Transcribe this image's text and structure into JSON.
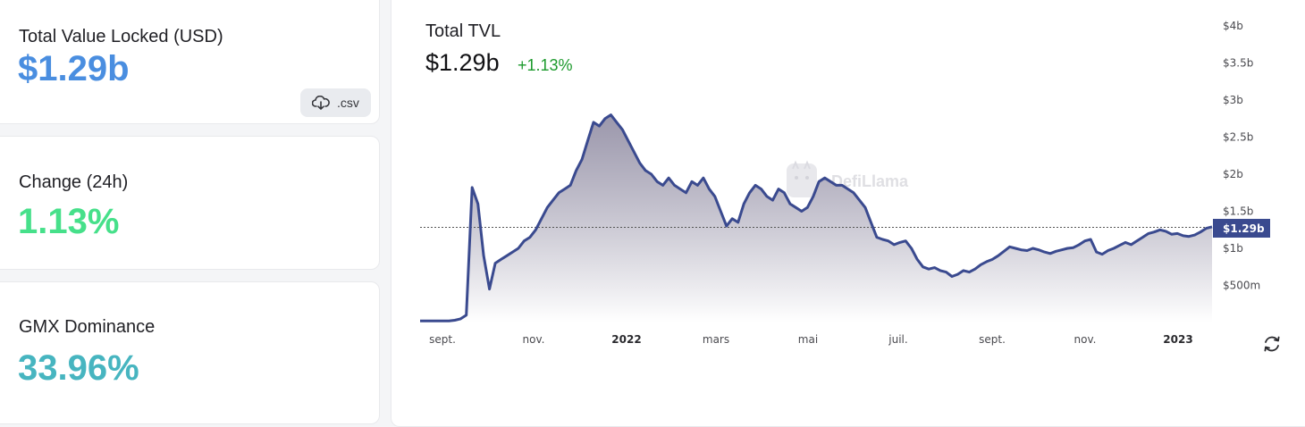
{
  "stats": {
    "tvl": {
      "label": "Total Value Locked (USD)",
      "value": "$1.29b",
      "color": "#4a8ee0"
    },
    "change": {
      "label": "Change (24h)",
      "value": "1.13%",
      "color": "#46e08a"
    },
    "dominance": {
      "label": "GMX Dominance",
      "value": "33.96%",
      "color": "#47b5c0"
    }
  },
  "csv_button": {
    "label": ".csv",
    "icon": "cloud-download-icon"
  },
  "chart": {
    "title": "Total TVL",
    "current_value": "$1.29b",
    "change": "+1.13%",
    "watermark": "DefiLlama",
    "current_label": "$1.29b",
    "refresh_icon": "refresh-icon",
    "line_color": "#3a4a8f",
    "label_badge_color": "#3a4a8f"
  },
  "chart_data": {
    "type": "area",
    "title": "Total TVL",
    "y_ticks": [
      "$500m",
      "$1b",
      "$1.5b",
      "$2b",
      "$2.5b",
      "$3b",
      "$3.5b",
      "$4b"
    ],
    "x_ticks": [
      {
        "label": "sept.",
        "bold": false
      },
      {
        "label": "nov.",
        "bold": false
      },
      {
        "label": "2022",
        "bold": true
      },
      {
        "label": "mars",
        "bold": false
      },
      {
        "label": "mai",
        "bold": false
      },
      {
        "label": "juil.",
        "bold": false
      },
      {
        "label": "sept.",
        "bold": false
      },
      {
        "label": "nov.",
        "bold": false
      },
      {
        "label": "2023",
        "bold": true
      }
    ],
    "ylim": [
      0,
      4000000000
    ],
    "series": [
      {
        "values_b": [
          0.02,
          0.02,
          0.02,
          0.02,
          0.02,
          0.02,
          0.03,
          0.05,
          0.1,
          1.82,
          1.6,
          0.9,
          0.45,
          0.8,
          0.85,
          0.9,
          0.95,
          1.0,
          1.1,
          1.15,
          1.25,
          1.4,
          1.55,
          1.65,
          1.75,
          1.8,
          1.85,
          2.05,
          2.2,
          2.45,
          2.7,
          2.65,
          2.75,
          2.8,
          2.7,
          2.6,
          2.45,
          2.3,
          2.15,
          2.05,
          2.0,
          1.9,
          1.85,
          1.95,
          1.85,
          1.8,
          1.75,
          1.9,
          1.85,
          1.95,
          1.8,
          1.7,
          1.5,
          1.3,
          1.4,
          1.35,
          1.6,
          1.75,
          1.85,
          1.8,
          1.7,
          1.65,
          1.8,
          1.75,
          1.6,
          1.55,
          1.5,
          1.55,
          1.7,
          1.9,
          1.95,
          1.9,
          1.85,
          1.85,
          1.8,
          1.75,
          1.65,
          1.55,
          1.35,
          1.15,
          1.12,
          1.1,
          1.05,
          1.08,
          1.1,
          1.0,
          0.85,
          0.75,
          0.72,
          0.74,
          0.7,
          0.68,
          0.62,
          0.65,
          0.7,
          0.68,
          0.72,
          0.78,
          0.82,
          0.85,
          0.9,
          0.96,
          1.02,
          1.0,
          0.98,
          0.97,
          1.0,
          0.98,
          0.95,
          0.93,
          0.96,
          0.98,
          1.0,
          1.01,
          1.05,
          1.1,
          1.12,
          0.95,
          0.92,
          0.97,
          1.0,
          1.04,
          1.08,
          1.05,
          1.1,
          1.15,
          1.2,
          1.22,
          1.25,
          1.23,
          1.19,
          1.2,
          1.17,
          1.16,
          1.18,
          1.22,
          1.27,
          1.29
        ]
      }
    ]
  }
}
